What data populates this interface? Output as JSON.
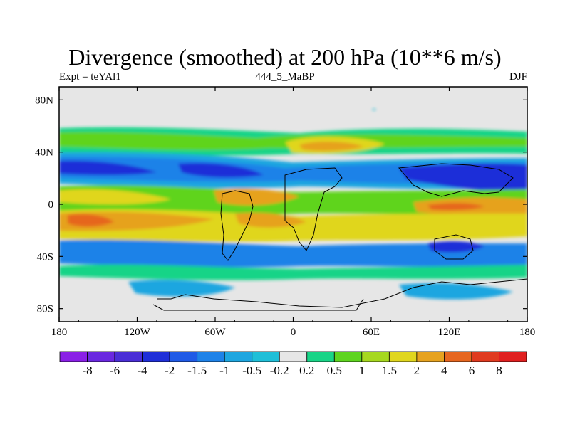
{
  "chart_data": {
    "type": "heatmap",
    "title": "Divergence (smoothed) at 200 hPa (10**6 m/s)",
    "subtitle_left": "Expt = teYAl1",
    "subtitle_center": "444_5_MaBP",
    "subtitle_right": "DJF",
    "x_ticks": [
      "180",
      "120W",
      "60W",
      "0",
      "60E",
      "120E",
      "180"
    ],
    "y_ticks": [
      "80N",
      "40N",
      "0",
      "40S",
      "80S"
    ],
    "xlim": [
      -180,
      180
    ],
    "ylim": [
      -90,
      90
    ],
    "colorbar": {
      "levels": [
        "-8",
        "-6",
        "-4",
        "-2",
        "-1.5",
        "-1",
        "-0.5",
        "-0.2",
        "0.2",
        "0.5",
        "1",
        "1.5",
        "2",
        "4",
        "6",
        "8"
      ],
      "colors": [
        "#8a1fe6",
        "#6a28e0",
        "#4a2ed6",
        "#1f2fd8",
        "#1f5ae6",
        "#1e82e8",
        "#1ea6e0",
        "#1fbfd8",
        "#e6e6e6",
        "#19d487",
        "#5ed41f",
        "#a6d81f",
        "#e0d61e",
        "#e6a21f",
        "#e6661f",
        "#e03a1f",
        "#e01f1f"
      ]
    }
  }
}
